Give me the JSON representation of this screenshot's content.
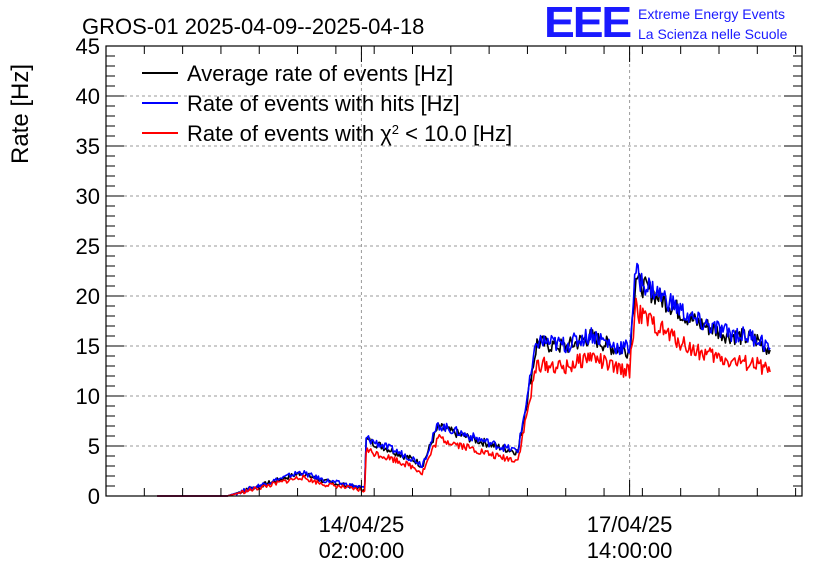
{
  "brand": {
    "mark": "EEE",
    "line1": "Extreme Energy Events",
    "line2": "La Scienza nelle Scuole",
    "color": "#1a1aff"
  },
  "chart_data": {
    "type": "line",
    "title": "GROS-01 2025-04-09--2025-04-18",
    "ylabel": "Rate [Hz]",
    "xlabel": "",
    "ylim": [
      0,
      45
    ],
    "yticks": [
      0,
      5,
      10,
      15,
      20,
      25,
      30,
      35,
      40,
      45
    ],
    "xlim": [
      "2025-04-10 18:00",
      "2025-04-19 20:00"
    ],
    "xticks": [
      {
        "at": "2025-04-14 02:00",
        "line1": "14/04/25",
        "line2": "02:00:00"
      },
      {
        "at": "2025-04-17 14:00",
        "line1": "17/04/25",
        "line2": "14:00:00"
      }
    ],
    "grid": true,
    "legend_position": "top-left",
    "series": [
      {
        "name": "Average rate of events [Hz]",
        "color": "#000000",
        "x": [
          "2025-04-11 10:00",
          "2025-04-12 08:00",
          "2025-04-13 06:00",
          "2025-04-13 07:00",
          "2025-04-13 14:00",
          "2025-04-13 22:00",
          "2025-04-14 03:00",
          "2025-04-14 03:30",
          "2025-04-14 06:00",
          "2025-04-14 12:00",
          "2025-04-14 19:00",
          "2025-04-14 21:00",
          "2025-04-15 02:00",
          "2025-04-15 10:00",
          "2025-04-15 21:00",
          "2025-04-16 03:00",
          "2025-04-16 09:00",
          "2025-04-16 18:00",
          "2025-04-17 01:00",
          "2025-04-17 02:00",
          "2025-04-17 09:00",
          "2025-04-17 14:00",
          "2025-04-17 16:00",
          "2025-04-17 17:00",
          "2025-04-18 01:00",
          "2025-04-18 10:00",
          "2025-04-18 20:00",
          "2025-04-19 06:00",
          "2025-04-19 10:00"
        ],
        "values": [
          0,
          0,
          2.2,
          2.3,
          1.5,
          1.0,
          0.7,
          5.6,
          5.3,
          4.5,
          3.5,
          3.0,
          6.9,
          6.0,
          4.9,
          4.4,
          15.3,
          14.9,
          15.8,
          15.9,
          14.8,
          14.6,
          22.2,
          21.2,
          19.5,
          17.5,
          16.2,
          15.6,
          14.6
        ]
      },
      {
        "name": "Rate of events with hits [Hz]",
        "color": "#0000ff",
        "x": [
          "2025-04-11 10:00",
          "2025-04-12 08:00",
          "2025-04-13 06:00",
          "2025-04-13 07:00",
          "2025-04-13 14:00",
          "2025-04-13 22:00",
          "2025-04-14 03:00",
          "2025-04-14 03:30",
          "2025-04-14 06:00",
          "2025-04-14 12:00",
          "2025-04-14 19:00",
          "2025-04-14 21:00",
          "2025-04-15 02:00",
          "2025-04-15 10:00",
          "2025-04-15 21:00",
          "2025-04-16 03:00",
          "2025-04-16 09:00",
          "2025-04-16 18:00",
          "2025-04-17 01:00",
          "2025-04-17 02:00",
          "2025-04-17 09:00",
          "2025-04-17 14:00",
          "2025-04-17 16:00",
          "2025-04-17 17:00",
          "2025-04-18 01:00",
          "2025-04-18 10:00",
          "2025-04-18 20:00",
          "2025-04-19 06:00",
          "2025-04-19 10:00"
        ],
        "values": [
          0,
          0,
          2.3,
          2.4,
          1.6,
          1.1,
          0.8,
          5.8,
          5.4,
          4.6,
          3.6,
          3.1,
          7.1,
          6.2,
          5.0,
          4.5,
          15.5,
          15.1,
          16.0,
          16.2,
          15.0,
          14.8,
          22.8,
          21.6,
          19.8,
          17.6,
          16.4,
          15.8,
          14.8
        ]
      },
      {
        "name": "Rate of events with χ2 < 10.0 [Hz]",
        "color": "#ff0000",
        "x": [
          "2025-04-11 10:00",
          "2025-04-12 08:00",
          "2025-04-13 06:00",
          "2025-04-13 07:00",
          "2025-04-13 14:00",
          "2025-04-13 22:00",
          "2025-04-14 03:00",
          "2025-04-14 03:30",
          "2025-04-14 06:00",
          "2025-04-14 12:00",
          "2025-04-14 19:00",
          "2025-04-14 21:00",
          "2025-04-15 02:00",
          "2025-04-15 10:00",
          "2025-04-15 21:00",
          "2025-04-16 03:00",
          "2025-04-16 09:00",
          "2025-04-16 18:00",
          "2025-04-17 01:00",
          "2025-04-17 02:00",
          "2025-04-17 09:00",
          "2025-04-17 14:00",
          "2025-04-17 16:00",
          "2025-04-17 17:00",
          "2025-04-18 01:00",
          "2025-04-18 10:00",
          "2025-04-18 20:00",
          "2025-04-19 06:00",
          "2025-04-19 10:00"
        ],
        "values": [
          0,
          0,
          1.8,
          1.9,
          1.2,
          0.8,
          0.5,
          4.6,
          4.3,
          3.7,
          2.8,
          2.3,
          5.8,
          5.0,
          3.9,
          3.6,
          13.2,
          12.8,
          13.9,
          14.0,
          12.8,
          12.5,
          19.4,
          18.2,
          16.4,
          14.6,
          13.6,
          13.1,
          12.4
        ]
      }
    ]
  }
}
